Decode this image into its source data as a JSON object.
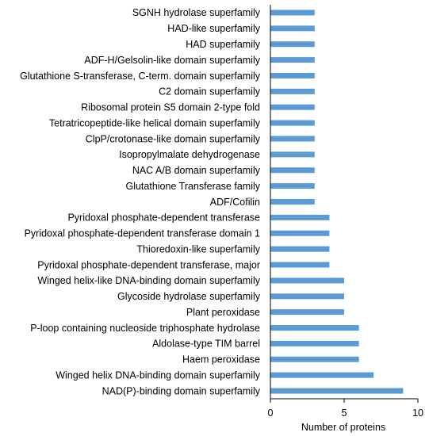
{
  "chart_data": {
    "type": "bar",
    "orientation": "horizontal",
    "title": "",
    "xlabel": "Number of proteins",
    "ylabel": "",
    "xlim": [
      0,
      10
    ],
    "xticks": [
      0,
      5,
      10
    ],
    "grid": false,
    "bar_color": "#5b9bd5",
    "categories": [
      "SGNH hydrolase superfamily",
      "HAD-like superfamily",
      "HAD superfamily",
      "ADF-H/Gelsolin-like domain superfamily",
      "Glutathione S-transferase, C-term. domain superfamily",
      "C2 domain superfamily",
      "Ribosomal protein S5 domain 2-type fold",
      "Tetratricopeptide-like helical domain superfamily",
      "ClpP/crotonase-like domain superfamily",
      "Isopropylmalate dehydrogenase",
      "NAC A/B domain superfamily",
      "Glutathione Transferase family",
      "ADF/Cofilin",
      "Pyridoxal phosphate-dependent transferase",
      "Pyridoxal phosphate-dependent transferase domain 1",
      "Thioredoxin-like superfamily",
      "Pyridoxal phosphate-dependent transferase, major",
      "Winged helix-like DNA-binding domain superfamily",
      "Glycoside hydrolase superfamily",
      "Plant peroxidase",
      "P-loop containing nucleoside triphosphate hydrolase",
      "Aldolase-type TIM barrel",
      "Haem peroxidase",
      "Winged helix DNA-binding domain superfamily",
      "NAD(P)-binding domain superfamily"
    ],
    "values": [
      3,
      3,
      3,
      3,
      3,
      3,
      3,
      3,
      3,
      3,
      3,
      3,
      3,
      4,
      4,
      4,
      4,
      5,
      5,
      5,
      6,
      6,
      6,
      7,
      9
    ]
  }
}
